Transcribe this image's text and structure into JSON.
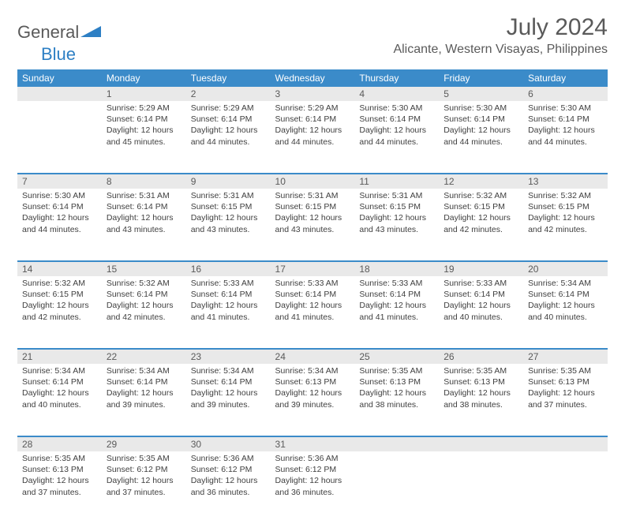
{
  "brand": {
    "part1": "General",
    "part2": "Blue"
  },
  "title": "July 2024",
  "location": "Alicante, Western Visayas, Philippines",
  "colors": {
    "header_bg": "#3b8bc9",
    "header_text": "#ffffff",
    "daynum_bg": "#e9e9e9",
    "rule": "#3b8bc9",
    "text": "#404040",
    "title_text": "#5a5a5a"
  },
  "weekdays": [
    "Sunday",
    "Monday",
    "Tuesday",
    "Wednesday",
    "Thursday",
    "Friday",
    "Saturday"
  ],
  "weeks": [
    [
      null,
      {
        "n": "1",
        "sunrise": "5:29 AM",
        "sunset": "6:14 PM",
        "daylight": "12 hours and 45 minutes."
      },
      {
        "n": "2",
        "sunrise": "5:29 AM",
        "sunset": "6:14 PM",
        "daylight": "12 hours and 44 minutes."
      },
      {
        "n": "3",
        "sunrise": "5:29 AM",
        "sunset": "6:14 PM",
        "daylight": "12 hours and 44 minutes."
      },
      {
        "n": "4",
        "sunrise": "5:30 AM",
        "sunset": "6:14 PM",
        "daylight": "12 hours and 44 minutes."
      },
      {
        "n": "5",
        "sunrise": "5:30 AM",
        "sunset": "6:14 PM",
        "daylight": "12 hours and 44 minutes."
      },
      {
        "n": "6",
        "sunrise": "5:30 AM",
        "sunset": "6:14 PM",
        "daylight": "12 hours and 44 minutes."
      }
    ],
    [
      {
        "n": "7",
        "sunrise": "5:30 AM",
        "sunset": "6:14 PM",
        "daylight": "12 hours and 44 minutes."
      },
      {
        "n": "8",
        "sunrise": "5:31 AM",
        "sunset": "6:14 PM",
        "daylight": "12 hours and 43 minutes."
      },
      {
        "n": "9",
        "sunrise": "5:31 AM",
        "sunset": "6:15 PM",
        "daylight": "12 hours and 43 minutes."
      },
      {
        "n": "10",
        "sunrise": "5:31 AM",
        "sunset": "6:15 PM",
        "daylight": "12 hours and 43 minutes."
      },
      {
        "n": "11",
        "sunrise": "5:31 AM",
        "sunset": "6:15 PM",
        "daylight": "12 hours and 43 minutes."
      },
      {
        "n": "12",
        "sunrise": "5:32 AM",
        "sunset": "6:15 PM",
        "daylight": "12 hours and 42 minutes."
      },
      {
        "n": "13",
        "sunrise": "5:32 AM",
        "sunset": "6:15 PM",
        "daylight": "12 hours and 42 minutes."
      }
    ],
    [
      {
        "n": "14",
        "sunrise": "5:32 AM",
        "sunset": "6:15 PM",
        "daylight": "12 hours and 42 minutes."
      },
      {
        "n": "15",
        "sunrise": "5:32 AM",
        "sunset": "6:14 PM",
        "daylight": "12 hours and 42 minutes."
      },
      {
        "n": "16",
        "sunrise": "5:33 AM",
        "sunset": "6:14 PM",
        "daylight": "12 hours and 41 minutes."
      },
      {
        "n": "17",
        "sunrise": "5:33 AM",
        "sunset": "6:14 PM",
        "daylight": "12 hours and 41 minutes."
      },
      {
        "n": "18",
        "sunrise": "5:33 AM",
        "sunset": "6:14 PM",
        "daylight": "12 hours and 41 minutes."
      },
      {
        "n": "19",
        "sunrise": "5:33 AM",
        "sunset": "6:14 PM",
        "daylight": "12 hours and 40 minutes."
      },
      {
        "n": "20",
        "sunrise": "5:34 AM",
        "sunset": "6:14 PM",
        "daylight": "12 hours and 40 minutes."
      }
    ],
    [
      {
        "n": "21",
        "sunrise": "5:34 AM",
        "sunset": "6:14 PM",
        "daylight": "12 hours and 40 minutes."
      },
      {
        "n": "22",
        "sunrise": "5:34 AM",
        "sunset": "6:14 PM",
        "daylight": "12 hours and 39 minutes."
      },
      {
        "n": "23",
        "sunrise": "5:34 AM",
        "sunset": "6:14 PM",
        "daylight": "12 hours and 39 minutes."
      },
      {
        "n": "24",
        "sunrise": "5:34 AM",
        "sunset": "6:13 PM",
        "daylight": "12 hours and 39 minutes."
      },
      {
        "n": "25",
        "sunrise": "5:35 AM",
        "sunset": "6:13 PM",
        "daylight": "12 hours and 38 minutes."
      },
      {
        "n": "26",
        "sunrise": "5:35 AM",
        "sunset": "6:13 PM",
        "daylight": "12 hours and 38 minutes."
      },
      {
        "n": "27",
        "sunrise": "5:35 AM",
        "sunset": "6:13 PM",
        "daylight": "12 hours and 37 minutes."
      }
    ],
    [
      {
        "n": "28",
        "sunrise": "5:35 AM",
        "sunset": "6:13 PM",
        "daylight": "12 hours and 37 minutes."
      },
      {
        "n": "29",
        "sunrise": "5:35 AM",
        "sunset": "6:12 PM",
        "daylight": "12 hours and 37 minutes."
      },
      {
        "n": "30",
        "sunrise": "5:36 AM",
        "sunset": "6:12 PM",
        "daylight": "12 hours and 36 minutes."
      },
      {
        "n": "31",
        "sunrise": "5:36 AM",
        "sunset": "6:12 PM",
        "daylight": "12 hours and 36 minutes."
      },
      null,
      null,
      null
    ]
  ],
  "labels": {
    "sunrise": "Sunrise:",
    "sunset": "Sunset:",
    "daylight": "Daylight:"
  }
}
